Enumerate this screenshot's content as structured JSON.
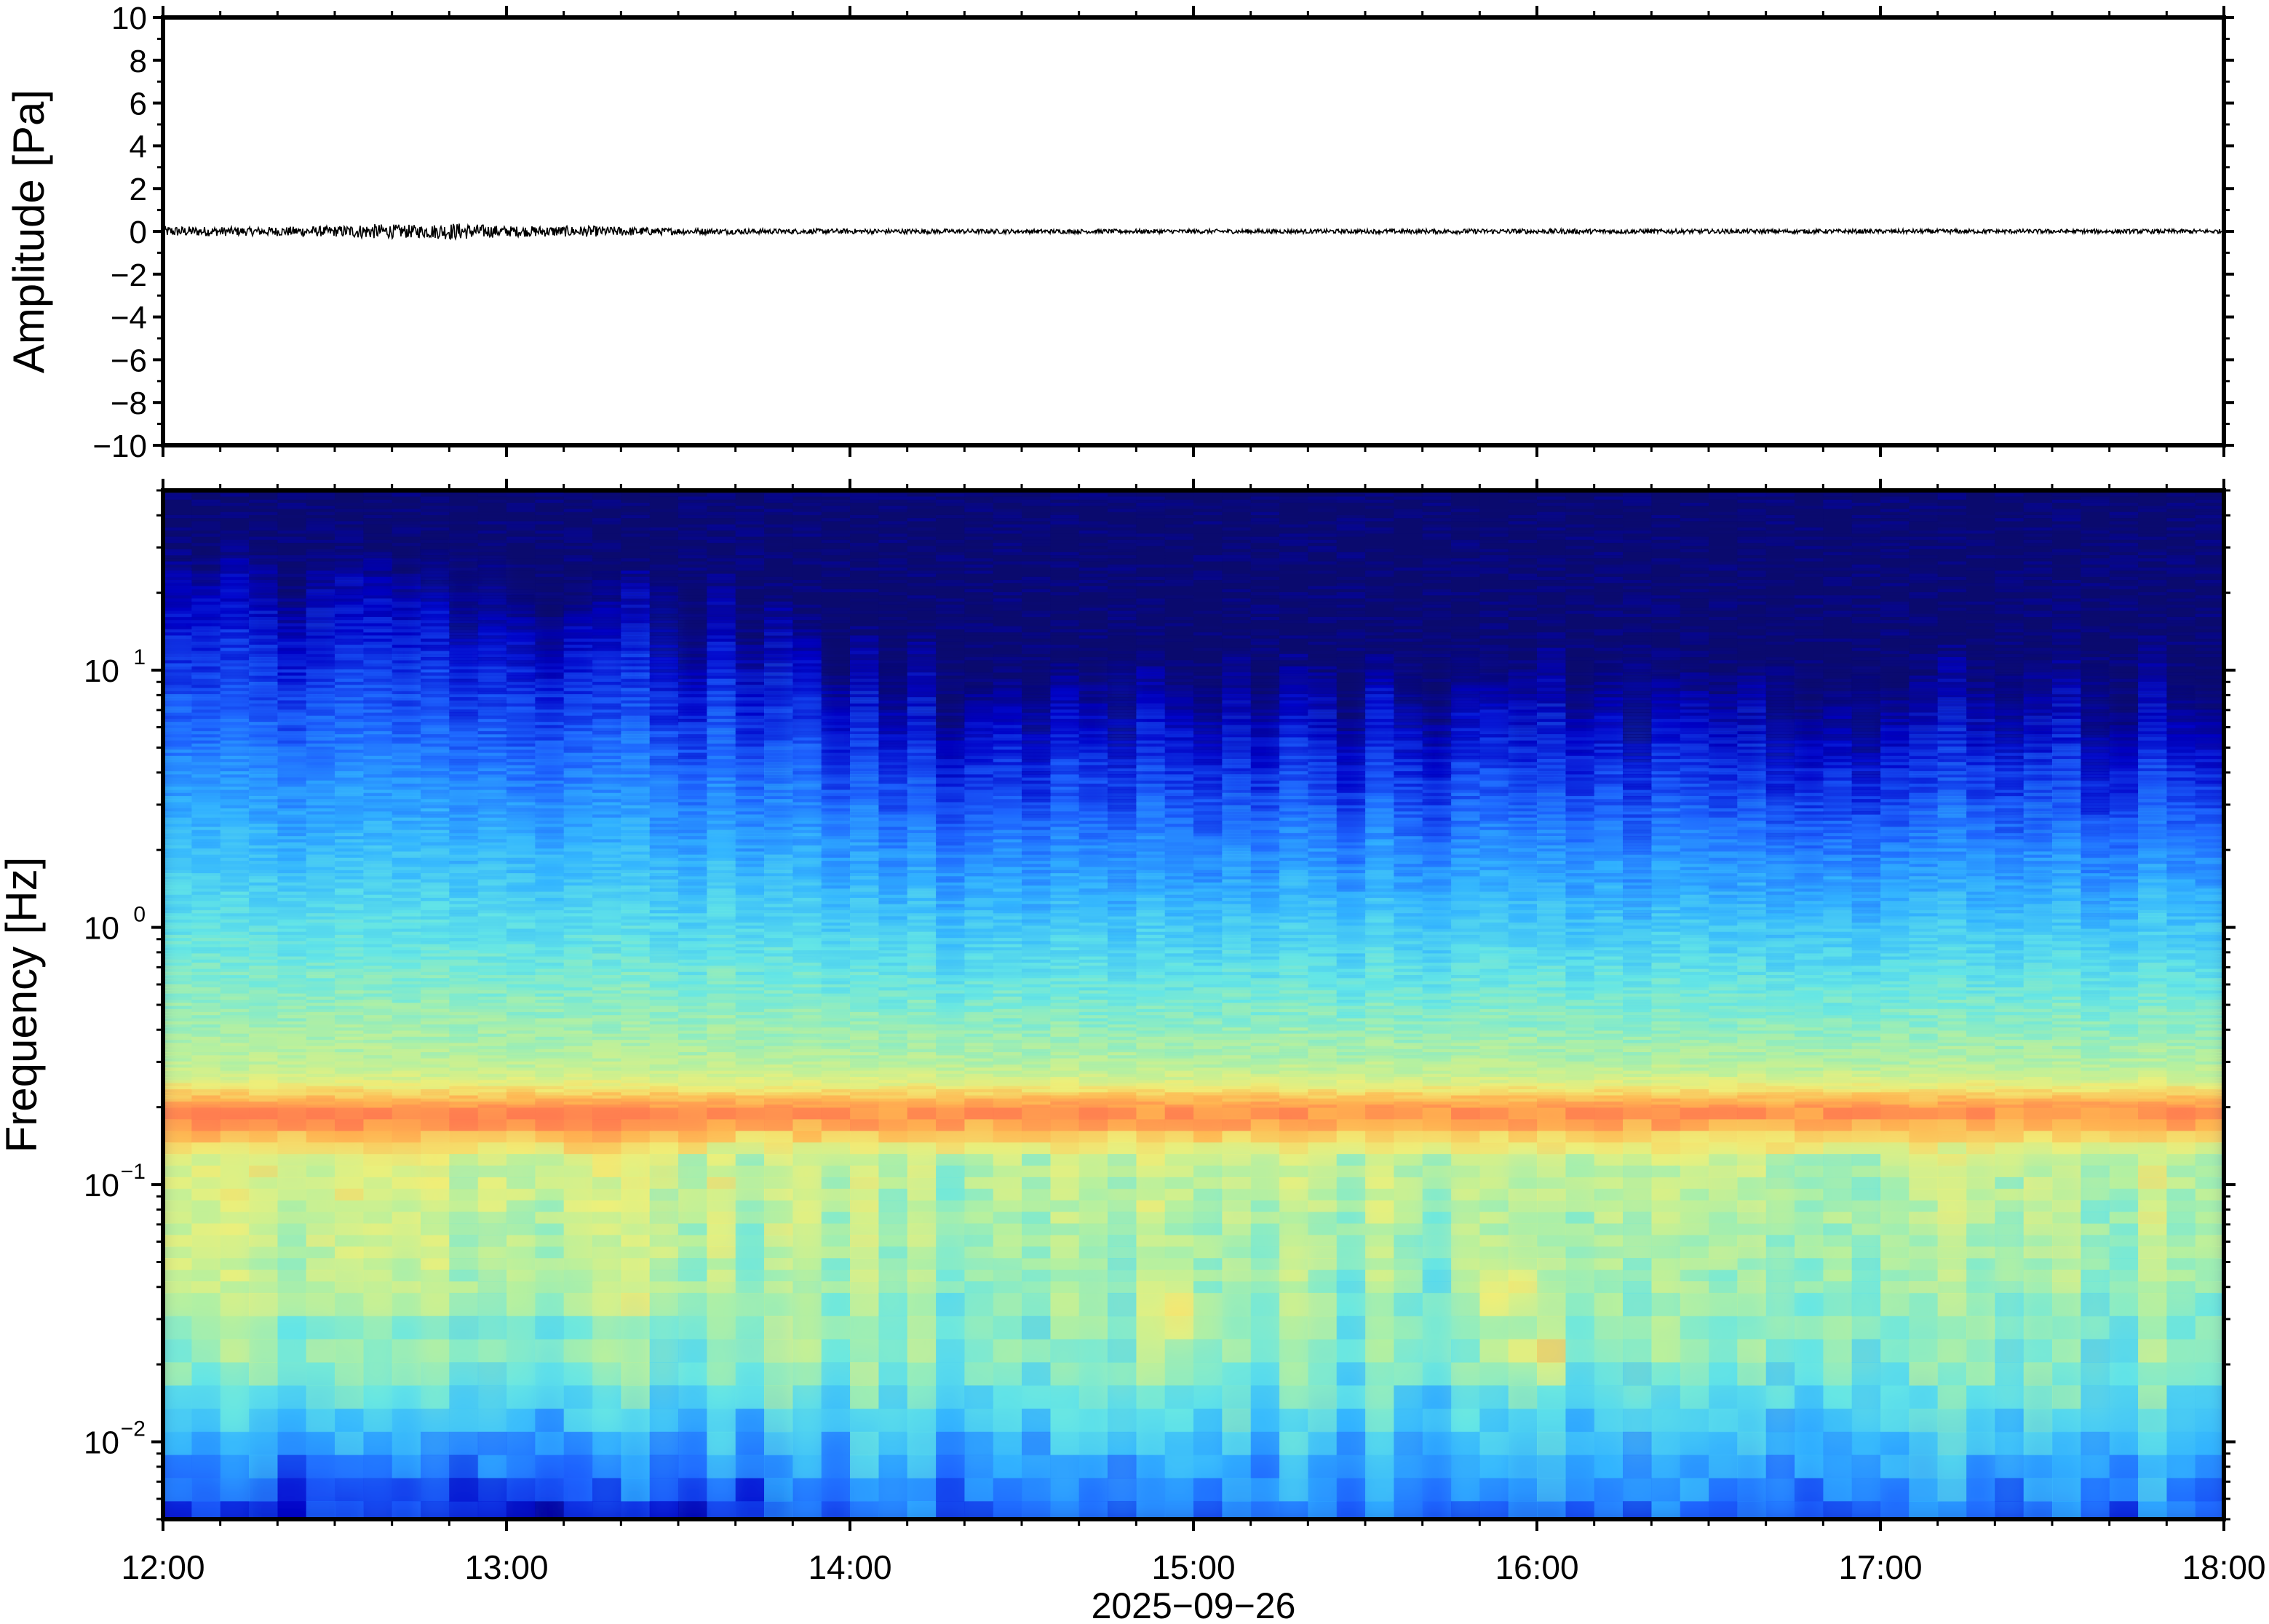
{
  "chart_data": [
    {
      "type": "line",
      "panel": "waveform",
      "ylabel": "Amplitude [Pa]",
      "ylim": [
        -10,
        10
      ],
      "yticks": [
        10,
        8,
        6,
        4,
        2,
        0,
        -2,
        -4,
        -6,
        -8,
        -10
      ],
      "ytick_labels": [
        "10",
        "8",
        "6",
        "4",
        "2",
        "0",
        "−2",
        "−4",
        "−6",
        "−8",
        "−10"
      ],
      "xlim": [
        "12:00",
        "18:00"
      ],
      "series": [
        {
          "x_hours": [
            12.0,
            12.25,
            12.5,
            12.6,
            12.75,
            12.85,
            13.0,
            13.25,
            13.5,
            13.75,
            14.0,
            14.5,
            15.0,
            15.5,
            16.0,
            16.5,
            17.0,
            17.5,
            18.0
          ],
          "envelope_pa": [
            0.25,
            0.2,
            0.25,
            0.35,
            0.3,
            0.4,
            0.25,
            0.25,
            0.15,
            0.12,
            0.12,
            0.1,
            0.1,
            0.1,
            0.12,
            0.1,
            0.1,
            0.1,
            0.1
          ]
        }
      ],
      "color": "#000000"
    },
    {
      "type": "heatmap",
      "panel": "spectrogram",
      "ylabel": "Frequency [Hz]",
      "yscale": "log",
      "ylim_hz": [
        0.005,
        50
      ],
      "yticks": [
        {
          "base": "10",
          "exp": "1",
          "value": 10
        },
        {
          "base": "10",
          "exp": "0",
          "value": 1
        },
        {
          "base": "10",
          "exp": "−1",
          "value": 0.1
        },
        {
          "base": "10",
          "exp": "−2",
          "value": 0.01
        }
      ],
      "xlabel": "2025−09−26",
      "xtick_labels": [
        "12:00",
        "13:00",
        "14:00",
        "15:00",
        "16:00",
        "17:00",
        "18:00"
      ],
      "colormap": "jet",
      "colormap_stops": [
        "#0a0a6e",
        "#0000c8",
        "#1e64ff",
        "#32b4ff",
        "#64e6e6",
        "#b4f0a0",
        "#f0f078",
        "#ffb450",
        "#ff7850"
      ],
      "background_color": "#0a0a6e",
      "dominant_band_hz": 0.19,
      "upper_edge_hz": [
        {
          "t": 12.0,
          "f": 18
        },
        {
          "t": 12.8,
          "f": 17
        },
        {
          "t": 13.3,
          "f": 14
        },
        {
          "t": 13.7,
          "f": 11
        },
        {
          "t": 14.0,
          "f": 7
        },
        {
          "t": 15.0,
          "f": 6
        },
        {
          "t": 15.8,
          "f": 7
        },
        {
          "t": 16.5,
          "f": 6
        },
        {
          "t": 17.5,
          "f": 6
        },
        {
          "t": 18.0,
          "f": 6
        }
      ],
      "hotspots": [
        {
          "t": 15.92,
          "f": 0.04
        },
        {
          "t": 16.0,
          "f": 0.022
        },
        {
          "t": 14.95,
          "f": 0.03
        }
      ]
    }
  ]
}
